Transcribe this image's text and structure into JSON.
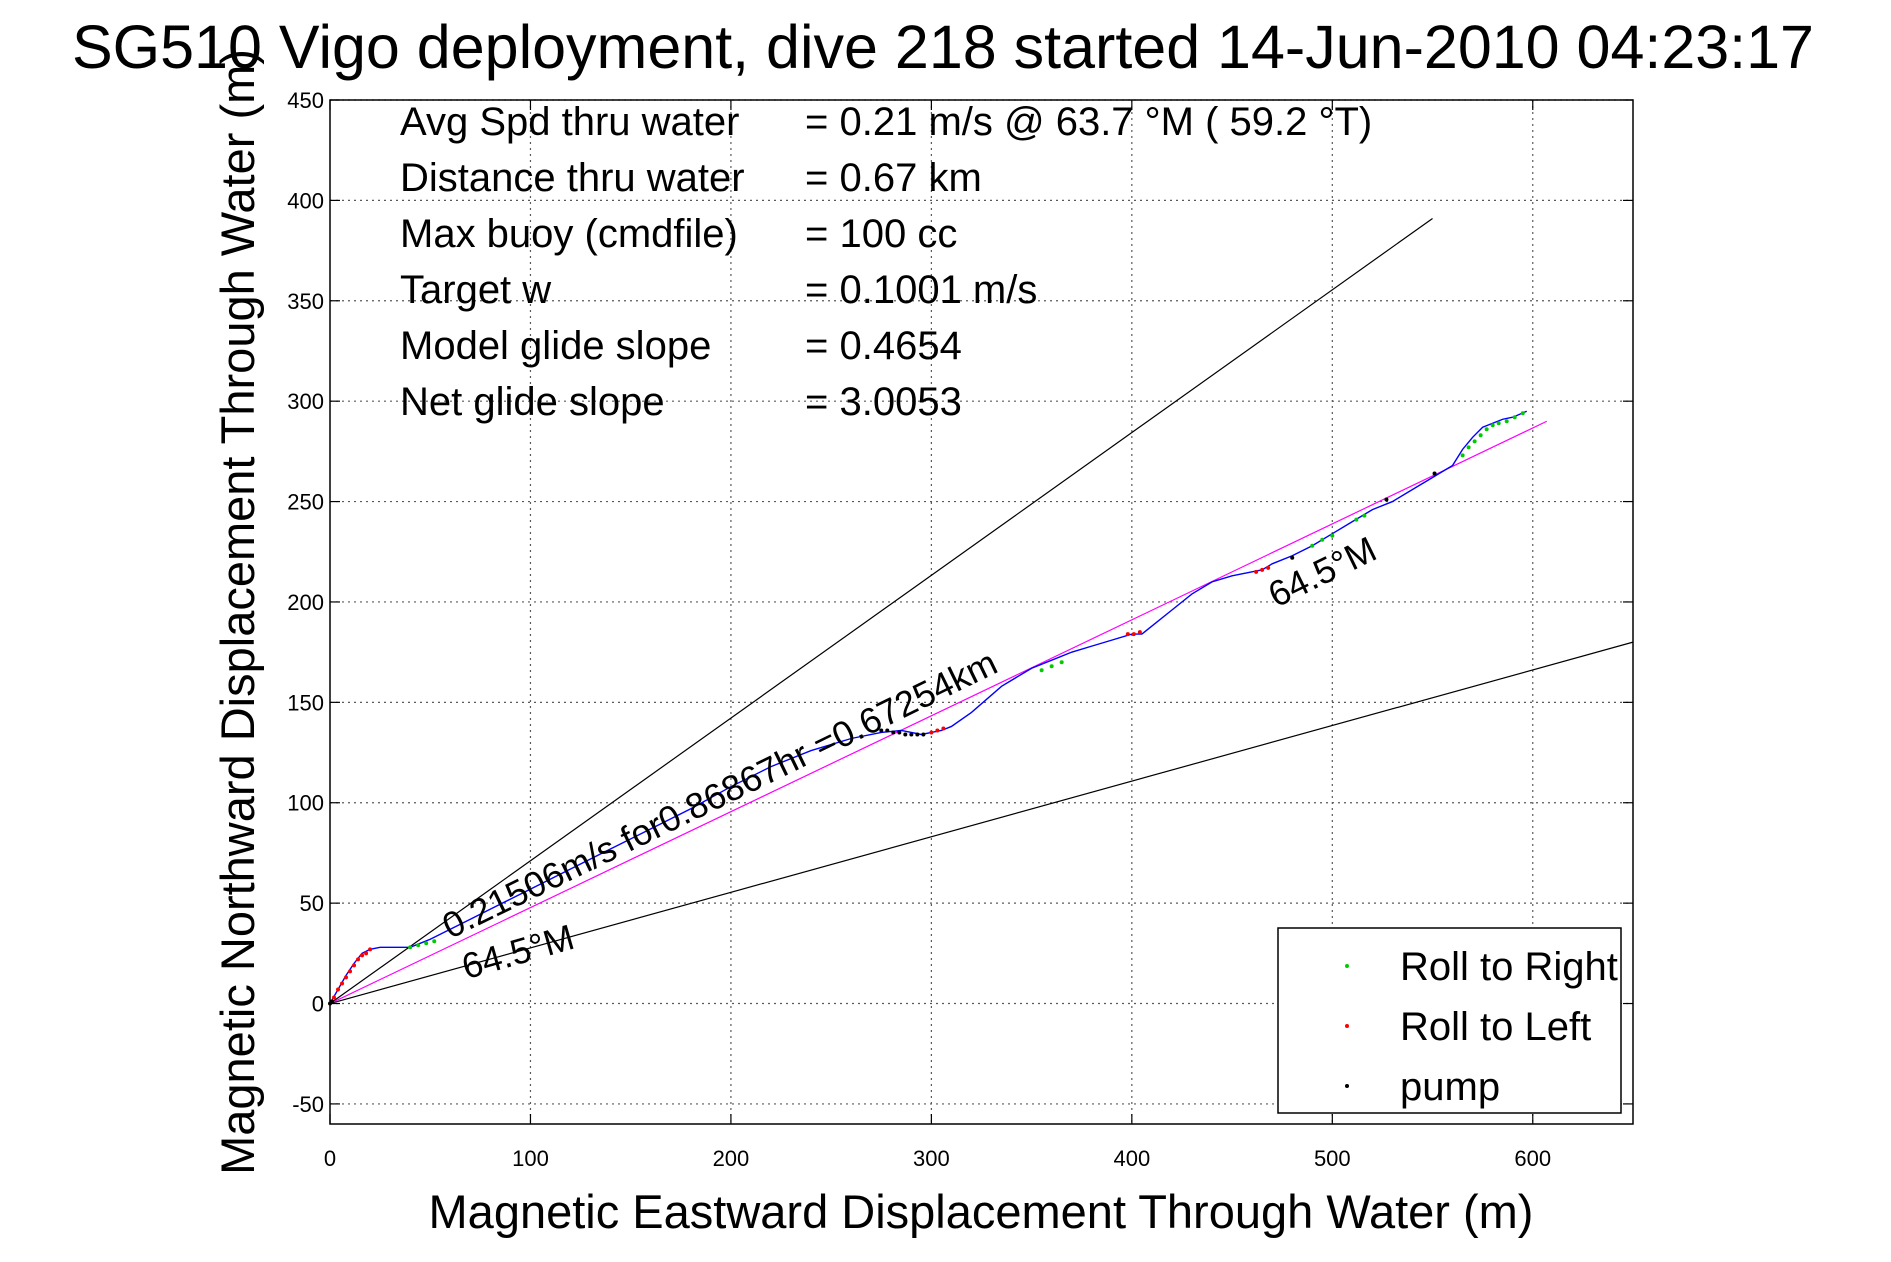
{
  "chart_data": {
    "type": "line",
    "title": "SG510 Vigo deployment, dive 218 started 14-Jun-2010 04:23:17",
    "xlabel": "Magnetic Eastward Displacement Through Water (m)",
    "ylabel": "Magnetic Northward Displacement Through Water (m)",
    "xlim": [
      0,
      650
    ],
    "ylim": [
      -60,
      450
    ],
    "xticks": [
      0,
      100,
      200,
      300,
      400,
      500,
      600
    ],
    "yticks": [
      -50,
      0,
      50,
      100,
      150,
      200,
      250,
      300,
      350,
      400,
      450
    ],
    "grid": true,
    "legend_position": "bottom-right",
    "stats": [
      {
        "label": "Avg Spd thru water",
        "value": "=  0.21 m/s @  63.7 °M ( 59.2 °T)"
      },
      {
        "label": "Distance thru water",
        "value": "=  0.67 km"
      },
      {
        "label": "Max buoy (cmdfile)",
        "value": "= 100 cc"
      },
      {
        "label": "Target w",
        "value": "= 0.1001 m/s"
      },
      {
        "label": "Model glide slope",
        "value": "= 0.4654"
      },
      {
        "label": "Net glide slope",
        "value": "= 3.0053"
      }
    ],
    "annotations": [
      {
        "text": "0.21506m/s for0.86867hr =0.67254km",
        "x": 60,
        "y": 32,
        "angle_deg": 26
      },
      {
        "text": "64.5°M",
        "x": 68,
        "y": 12,
        "angle_deg": 16
      },
      {
        "text": "64.5°M",
        "x": 472,
        "y": 197,
        "angle_deg": 26
      }
    ],
    "reference_lines": [
      {
        "x": [
          0,
          550
        ],
        "y": [
          0,
          391
        ]
      },
      {
        "x": [
          0,
          650
        ],
        "y": [
          0,
          180
        ]
      },
      {
        "x": [
          0,
          607
        ],
        "y": [
          0,
          290
        ]
      }
    ],
    "track": {
      "color": "#0000ff",
      "x": [
        0,
        4,
        8,
        12,
        16,
        20,
        25,
        30,
        35,
        40,
        45,
        50,
        60,
        70,
        80,
        90,
        100,
        120,
        140,
        160,
        180,
        200,
        220,
        240,
        260,
        275,
        285,
        290,
        295,
        300,
        305,
        310,
        320,
        335,
        350,
        360,
        370,
        380,
        390,
        400,
        405,
        410,
        420,
        430,
        440,
        450,
        460,
        465,
        470,
        480,
        490,
        500,
        510,
        520,
        530,
        540,
        550,
        560,
        565,
        570,
        575,
        580,
        585,
        590,
        597
      ],
      "y": [
        0,
        7,
        14,
        20,
        25,
        27,
        28,
        28,
        28,
        28,
        30,
        32,
        37,
        42,
        47,
        52,
        57,
        67,
        77,
        87,
        97,
        108,
        118,
        126,
        132,
        135,
        136,
        135,
        134,
        135,
        136,
        138,
        145,
        158,
        167,
        171,
        175,
        178,
        181,
        184,
        184,
        188,
        196,
        204,
        210,
        213,
        215,
        216,
        219,
        223,
        228,
        234,
        240,
        246,
        250,
        256,
        262,
        268,
        276,
        282,
        287,
        289,
        291,
        292,
        295
      ]
    },
    "series": [
      {
        "name": "Roll to Right",
        "color": "#00cc00",
        "x": [
          40,
          44,
          48,
          52,
          355,
          360,
          365,
          490,
          495,
          500,
          512,
          516,
          565,
          568,
          571,
          574,
          577,
          580,
          583,
          587,
          591,
          595
        ],
        "y": [
          28,
          29,
          30,
          31,
          166,
          168,
          170,
          228,
          231,
          233,
          241,
          243,
          273,
          277,
          280,
          283,
          286,
          288,
          289,
          290,
          292,
          294
        ]
      },
      {
        "name": "Roll to Left",
        "color": "#ff0000",
        "x": [
          2,
          4,
          6,
          8,
          10,
          12,
          14,
          16,
          18,
          20,
          300,
          303,
          306,
          398,
          401,
          404,
          462,
          465,
          468
        ],
        "y": [
          3,
          7,
          10,
          13,
          16,
          19,
          22,
          24,
          25,
          27,
          135,
          136,
          137,
          184,
          184,
          185,
          215,
          216,
          217
        ]
      },
      {
        "name": "pump",
        "color": "#000000",
        "x": [
          0,
          1,
          275,
          278,
          281,
          284,
          287,
          290,
          293,
          296,
          480,
          527,
          551
        ],
        "y": [
          0,
          1,
          136,
          136,
          135,
          135,
          134,
          134,
          134,
          134,
          222,
          251,
          264
        ]
      }
    ]
  }
}
